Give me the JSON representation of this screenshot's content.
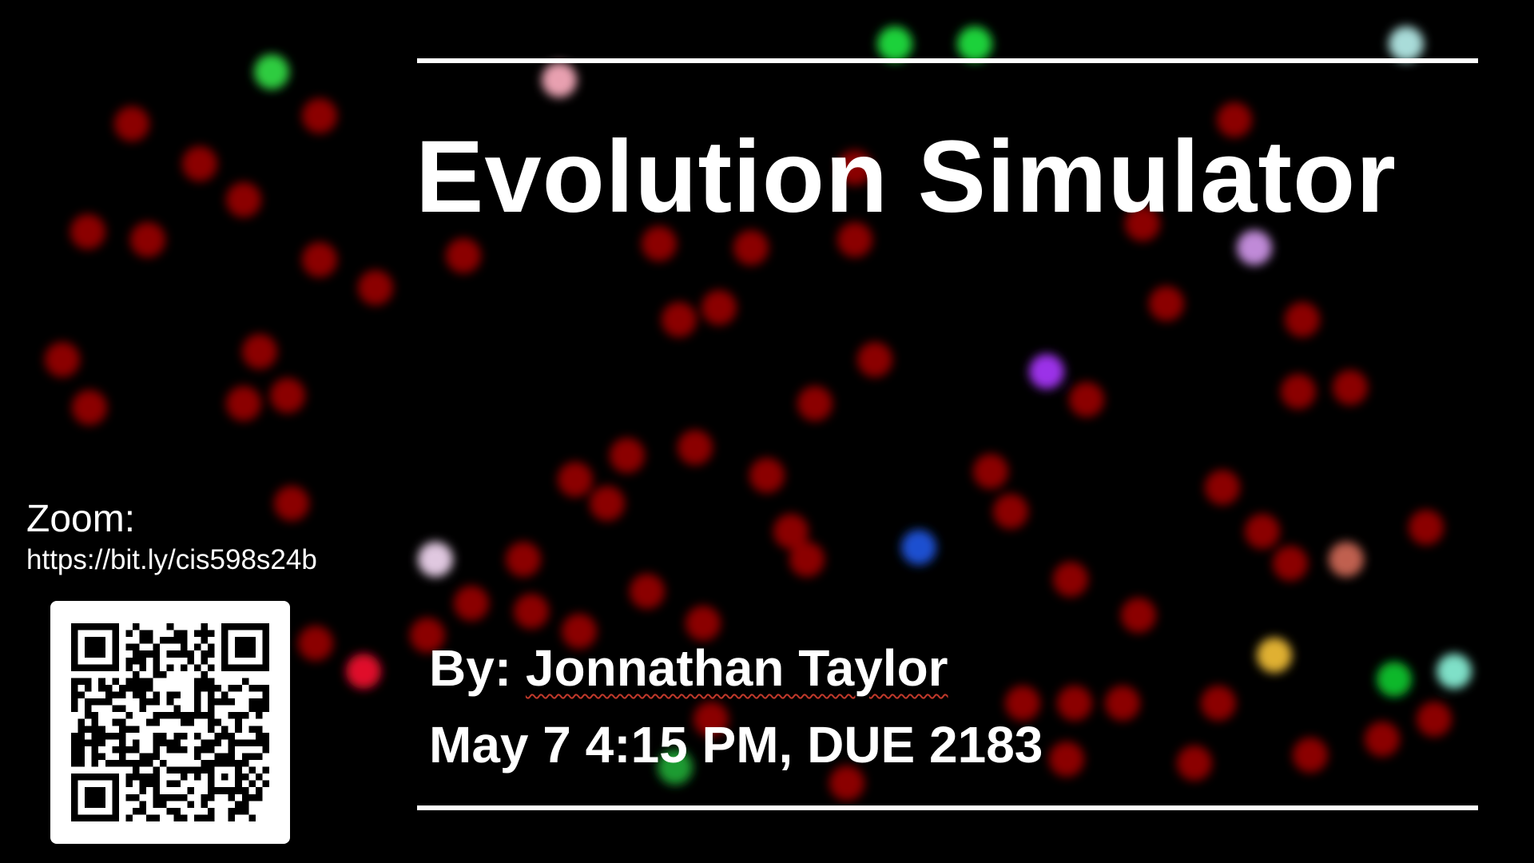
{
  "slide": {
    "title": "Evolution Simulator",
    "byline_prefix": "By: ",
    "author": "Jonnathan Taylor",
    "dateline": "May 7 4:15 PM, DUE 2183"
  },
  "zoom": {
    "label": "Zoom:",
    "link": "https://bit.ly/cis598s24b"
  },
  "colors": {
    "background": "#000000",
    "text": "#ffffff",
    "organism_default": "#8b0000"
  },
  "icons": {
    "qr": "qr-code-icon"
  }
}
